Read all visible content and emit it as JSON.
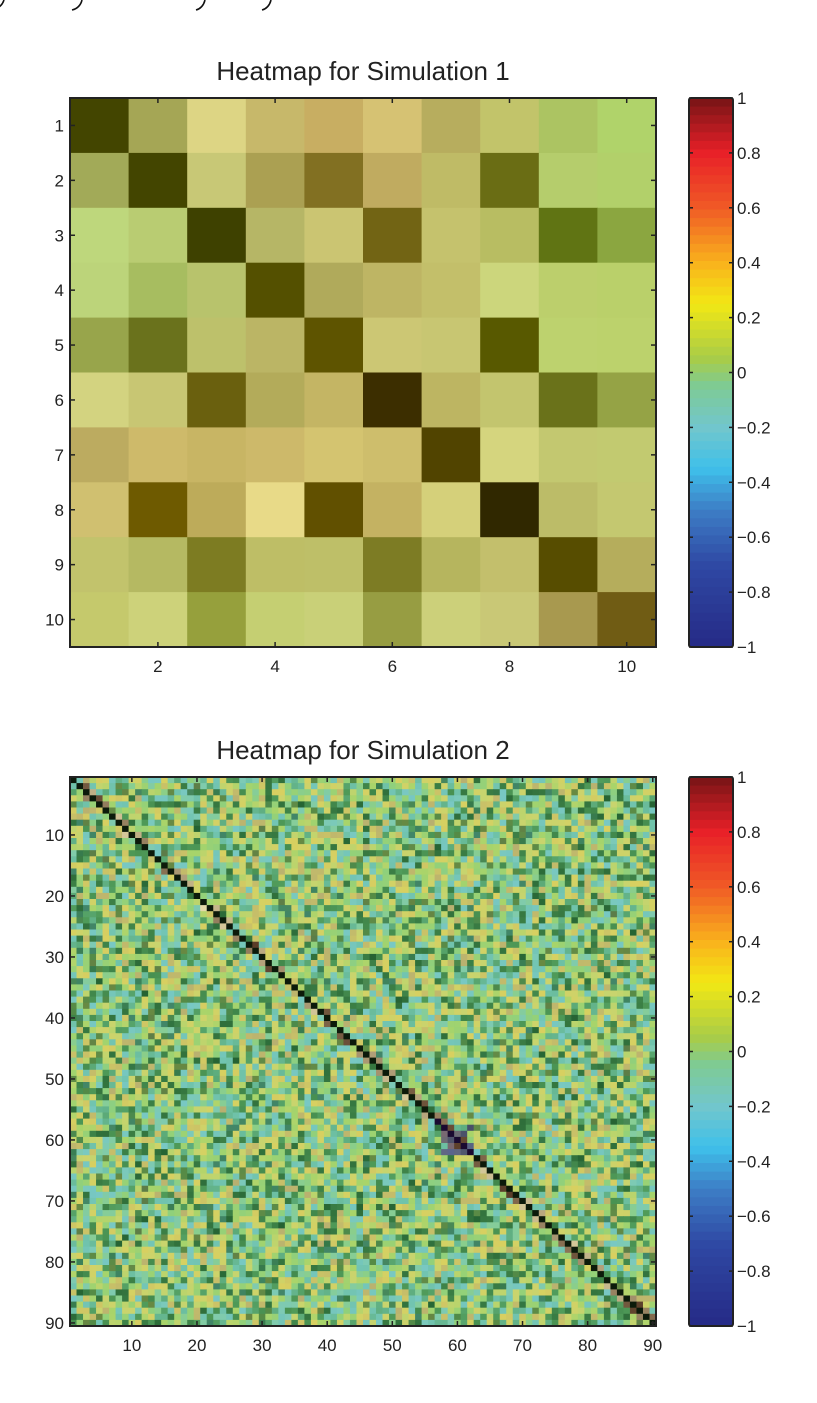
{
  "chart_data": [
    {
      "type": "heatmap",
      "title": "Heatmap for Simulation 1",
      "rows": 10,
      "cols": 10,
      "xticks": [
        "2",
        "4",
        "6",
        "8",
        "10"
      ],
      "xtick_values": [
        2,
        4,
        6,
        8,
        10
      ],
      "yticks": [
        "1",
        "2",
        "3",
        "4",
        "5",
        "6",
        "7",
        "8",
        "9",
        "10"
      ],
      "ytick_values": [
        1,
        2,
        3,
        4,
        5,
        6,
        7,
        8,
        9,
        10
      ],
      "cell_colors": [
        [
          "#434500",
          "#a5a655",
          "#ddd584",
          "#c7b86a",
          "#c8ae62",
          "#d6c273",
          "#b7ad5e",
          "#c2c46a",
          "#acc462",
          "#b0d36a"
        ],
        [
          "#a2aa58",
          "#434500",
          "#c8c876",
          "#aba052",
          "#827022",
          "#c0ab60",
          "#bfbb66",
          "#6a6d14",
          "#b5cd6c",
          "#b2d06a"
        ],
        [
          "#bed77c",
          "#b9cc72",
          "#3e4100",
          "#b6b666",
          "#cbc572",
          "#726414",
          "#c5c26d",
          "#b8bd62",
          "#607413",
          "#8ba640"
        ],
        [
          "#bcd47a",
          "#a7bd60",
          "#b8c36c",
          "#545000",
          "#b0aa5b",
          "#beb564",
          "#c3bf6a",
          "#ccd67c",
          "#bccf6c",
          "#bad06a"
        ],
        [
          "#98a54b",
          "#6a721c",
          "#bdc16b",
          "#bbb565",
          "#5e5400",
          "#ccc774",
          "#c8c672",
          "#585900",
          "#bdd26e",
          "#bcd26c"
        ],
        [
          "#d3d380",
          "#c8c673",
          "#6a600e",
          "#b3ab5a",
          "#c4b564",
          "#3c2e00",
          "#bdb562",
          "#c3c56e",
          "#6a721a",
          "#95a345"
        ],
        [
          "#bcab60",
          "#ceba6a",
          "#c8b564",
          "#cdb96a",
          "#d4c470",
          "#cebe6c",
          "#514400",
          "#d5d57e",
          "#c3c870",
          "#c2ca70"
        ],
        [
          "#d0c070",
          "#6e5a00",
          "#bdab5a",
          "#e8da88",
          "#615000",
          "#c4b262",
          "#d5d07a",
          "#302800",
          "#bcbc68",
          "#c4c870"
        ],
        [
          "#c2c36c",
          "#b5b962",
          "#7d7c22",
          "#bebe66",
          "#bebf68",
          "#7d7c24",
          "#b6b55e",
          "#c3bf6c",
          "#574d00",
          "#b5ad5c"
        ],
        [
          "#c5c96c",
          "#cdd27a",
          "#96a03c",
          "#c5cf72",
          "#c9d078",
          "#979d42",
          "#ccd07a",
          "#c9c876",
          "#a8994f",
          "#705c14"
        ]
      ],
      "colorbar": {
        "clim": [
          -1,
          1
        ],
        "ticks": [
          "1",
          "0.8",
          "0.6",
          "0.4",
          "0.2",
          "0",
          "−0.2",
          "−0.4",
          "−0.6",
          "−0.8",
          "−1"
        ],
        "tick_values": [
          1,
          0.8,
          0.6,
          0.4,
          0.2,
          0,
          -0.2,
          -0.4,
          -0.6,
          -0.8,
          -1
        ]
      }
    },
    {
      "type": "heatmap",
      "title": "Heatmap for Simulation 2",
      "rows": 90,
      "cols": 90,
      "diagonal_value": 1,
      "off_diagonal": "noise, roughly -0.3 to 0.3",
      "xticks": [
        "10",
        "20",
        "30",
        "40",
        "50",
        "60",
        "70",
        "80",
        "90"
      ],
      "xtick_values": [
        10,
        20,
        30,
        40,
        50,
        60,
        70,
        80,
        90
      ],
      "yticks": [
        "10",
        "20",
        "30",
        "40",
        "50",
        "60",
        "70",
        "80",
        "90"
      ],
      "ytick_values": [
        10,
        20,
        30,
        40,
        50,
        60,
        70,
        80,
        90
      ],
      "noise_palette": [
        "#2f6e3a",
        "#4f9a58",
        "#6fc2a8",
        "#78c8c4",
        "#8fd07c",
        "#a8d46a",
        "#c8d46e",
        "#d8d060",
        "#b8b070"
      ],
      "colorbar": {
        "clim": [
          -1,
          1
        ],
        "ticks": [
          "1",
          "0.8",
          "0.6",
          "0.4",
          "0.2",
          "0",
          "−0.2",
          "−0.4",
          "−0.6",
          "−0.8",
          "−1"
        ],
        "tick_values": [
          1,
          0.8,
          0.6,
          0.4,
          0.2,
          0,
          -0.2,
          -0.4,
          -0.6,
          -0.8,
          -1
        ]
      }
    }
  ],
  "colormap": [
    {
      "v": -1.0,
      "c": "#262a86"
    },
    {
      "v": -0.7,
      "c": "#2f49a4"
    },
    {
      "v": -0.5,
      "c": "#3d7ec6"
    },
    {
      "v": -0.35,
      "c": "#3fc0ea"
    },
    {
      "v": -0.2,
      "c": "#72c6cc"
    },
    {
      "v": -0.05,
      "c": "#7ecb94"
    },
    {
      "v": 0.05,
      "c": "#a8cc48"
    },
    {
      "v": 0.25,
      "c": "#f2e814"
    },
    {
      "v": 0.4,
      "c": "#f9b21c"
    },
    {
      "v": 0.6,
      "c": "#f05a26"
    },
    {
      "v": 0.8,
      "c": "#e82028"
    },
    {
      "v": 1.0,
      "c": "#761416"
    }
  ]
}
